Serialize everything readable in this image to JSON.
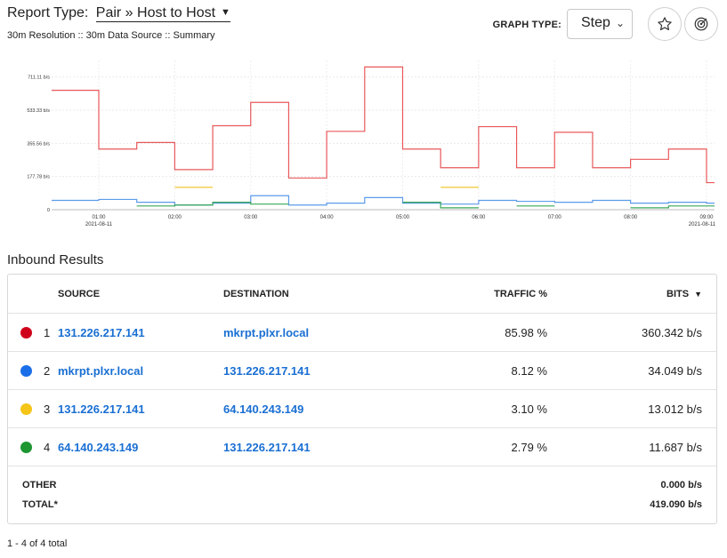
{
  "header": {
    "report_type_label": "Report Type:",
    "report_type_value": "Pair » Host to Host",
    "resolution_text": "30m Resolution :: 30m Data Source :: Summary",
    "graph_type_label": "GRAPH TYPE:",
    "graph_type_value": "Step"
  },
  "chart_data": {
    "type": "line",
    "step": true,
    "y_ticks": [
      "0",
      "177.78 b/s",
      "355.56 b/s",
      "533.33 b/s",
      "711.11 b/s"
    ],
    "x_ticks": [
      {
        "time": "01:00",
        "date": "2021-08-11"
      },
      {
        "time": "02:00",
        "date": ""
      },
      {
        "time": "03:00",
        "date": ""
      },
      {
        "time": "04:00",
        "date": ""
      },
      {
        "time": "05:00",
        "date": ""
      },
      {
        "time": "06:00",
        "date": ""
      },
      {
        "time": "07:00",
        "date": ""
      },
      {
        "time": "08:00",
        "date": ""
      },
      {
        "time": "09:00",
        "date": "2021-08-11"
      }
    ],
    "ylim": [
      0,
      800
    ],
    "x": [
      "00:30",
      "01:00",
      "01:30",
      "02:00",
      "02:30",
      "03:00",
      "03:30",
      "04:00",
      "04:30",
      "05:00",
      "05:30",
      "06:00",
      "06:30",
      "07:00",
      "07:30",
      "08:00",
      "08:30",
      "09:00"
    ],
    "series": [
      {
        "color": "#e8585a",
        "values": [
          640,
          325,
          360,
          215,
          450,
          575,
          170,
          420,
          765,
          325,
          225,
          445,
          225,
          415,
          225,
          270,
          325,
          145
        ]
      },
      {
        "color": "#5b9bea",
        "values": [
          50,
          55,
          40,
          25,
          35,
          75,
          25,
          35,
          65,
          35,
          30,
          50,
          45,
          40,
          50,
          35,
          40,
          35
        ]
      },
      {
        "color": "#f0c419",
        "values": [
          null,
          null,
          null,
          120,
          null,
          null,
          null,
          null,
          null,
          null,
          120,
          null,
          null,
          null,
          null,
          null,
          null,
          null
        ]
      },
      {
        "color": "#3aa757",
        "values": [
          null,
          null,
          20,
          25,
          40,
          30,
          null,
          null,
          null,
          40,
          10,
          null,
          20,
          null,
          null,
          10,
          20,
          20
        ]
      }
    ]
  },
  "inbound": {
    "title": "Inbound Results",
    "columns": {
      "source": "SOURCE",
      "destination": "DESTINATION",
      "traffic": "TRAFFIC %",
      "bits": "BITS"
    },
    "rows": [
      {
        "rank": "1",
        "color": "#d0021b",
        "source": "131.226.217.141",
        "destination": "mkrpt.plxr.local",
        "traffic": "85.98 %",
        "bits": "360.342 b/s"
      },
      {
        "rank": "2",
        "color": "#1a6fe8",
        "source": "mkrpt.plxr.local",
        "destination": "131.226.217.141",
        "traffic": "8.12 %",
        "bits": "34.049 b/s"
      },
      {
        "rank": "3",
        "color": "#f5c518",
        "source": "131.226.217.141",
        "destination": "64.140.243.149",
        "traffic": "3.10 %",
        "bits": "13.012 b/s"
      },
      {
        "rank": "4",
        "color": "#1e9632",
        "source": "64.140.243.149",
        "destination": "131.226.217.141",
        "traffic": "2.79 %",
        "bits": "11.687 b/s"
      }
    ],
    "other_label": "OTHER",
    "other_value": "0.000 b/s",
    "total_label": "TOTAL*",
    "total_value": "419.090 b/s"
  },
  "footer": {
    "pagination": "1 - 4 of 4 total"
  },
  "icons": {
    "star": "star-icon",
    "radar": "radar-icon",
    "sort": "caret-down-icon"
  }
}
